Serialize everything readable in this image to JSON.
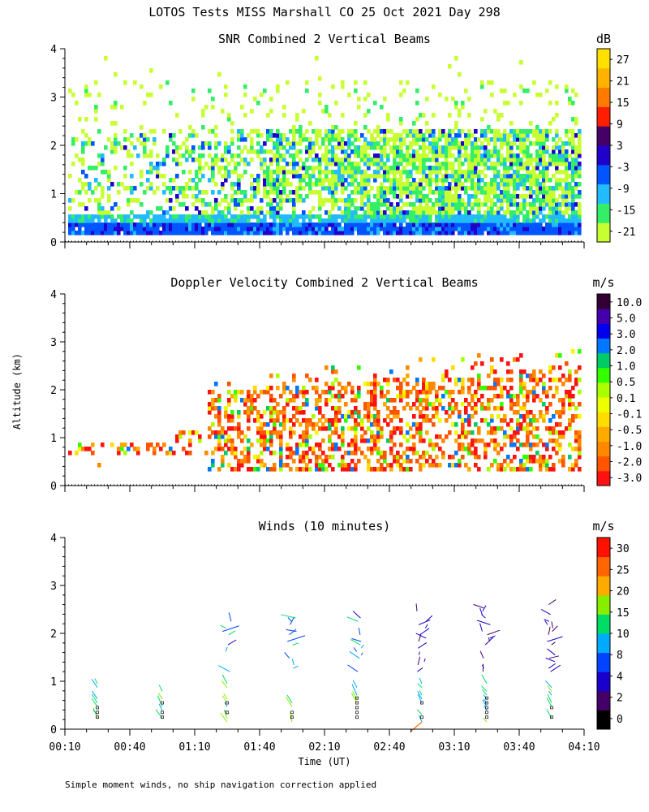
{
  "figure": {
    "title": "LOTOS Tests MISS Marshall CO  25 Oct 2021 Day 298",
    "ylabel": "Altitude (km)",
    "footnote": "Simple moment winds, no ship navigation correction applied"
  },
  "chart_data": [
    {
      "type": "heatmap",
      "title": "SNR Combined 2 Vertical Beams",
      "ylim": [
        0,
        4
      ],
      "yticks": [
        "0",
        "1",
        "2",
        "3",
        "4"
      ],
      "xlim_minutes": [
        10,
        250
      ],
      "colorbar": {
        "unit": "dB",
        "labels": [
          "-21",
          "-15",
          "-9",
          "-3",
          "3",
          "9",
          "15",
          "21",
          "27"
        ],
        "colors": [
          "#c8ff33",
          "#33ee66",
          "#22bbff",
          "#0055ff",
          "#2200cc",
          "#440066",
          "#ff1e00",
          "#ff7a00",
          "#ffb300",
          "#ffe000"
        ]
      },
      "data_summary": "Strong returns (-3 to 9 dB) below 0.6 km across all times; scattered weaker echoes (-21 to -9 dB) up to ~2.5 km, sparse patches to 3.5 km."
    },
    {
      "type": "heatmap",
      "title": "Doppler Velocity Combined 2 Vertical Beams",
      "ylim": [
        0,
        4
      ],
      "yticks": [
        "0",
        "1",
        "2",
        "3",
        "4"
      ],
      "xlim_minutes": [
        10,
        250
      ],
      "colorbar": {
        "unit": "m/s",
        "labels": [
          "-3.0",
          "-2.0",
          "-1.0",
          "-0.5",
          "-0.1",
          "0.1",
          "0.5",
          "1.0",
          "2.0",
          "3.0",
          "5.0",
          "10.0"
        ],
        "colors": [
          "#ff1111",
          "#ff5500",
          "#ff8800",
          "#ffaa00",
          "#ffdd00",
          "#eeff00",
          "#aaff00",
          "#33ff00",
          "#00cc66",
          "#0077ff",
          "#0000ee",
          "#4400aa",
          "#330033"
        ]
      },
      "data_summary": "Mostly negative (downward, -3 to -0.5 m/s) velocities between 0.4 and 2.5 km from ~01:10 onward; isolated echoes near 0.8 km early."
    },
    {
      "type": "scatter",
      "title": "Winds (10 minutes)",
      "xlabel": "Time (UT)",
      "ylim": [
        0,
        4
      ],
      "yticks": [
        "0",
        "1",
        "2",
        "3",
        "4"
      ],
      "xlim_minutes": [
        10,
        250
      ],
      "xticks": [
        "00:10",
        "00:40",
        "01:10",
        "01:40",
        "02:10",
        "02:40",
        "03:10",
        "03:40",
        "04:10"
      ],
      "profile_times_minutes": [
        25,
        55,
        85,
        115,
        145,
        175,
        205,
        235
      ],
      "colorbar": {
        "unit": "m/s",
        "labels": [
          "0",
          "2",
          "4",
          "8",
          "10",
          "15",
          "20",
          "25",
          "30"
        ],
        "colors": [
          "#000000",
          "#440066",
          "#1a00cc",
          "#0044ff",
          "#00aaff",
          "#00dd66",
          "#88ee00",
          "#ffaa00",
          "#ff6600",
          "#ff1100"
        ]
      },
      "data_summary": "Wind barbs at 30-minute intervals; low-level (0.2-0.9 km) winds 10-20 m/s, upper level (1.2-2.4 km) winds 2-15 m/s increasing in height coverage later."
    }
  ]
}
